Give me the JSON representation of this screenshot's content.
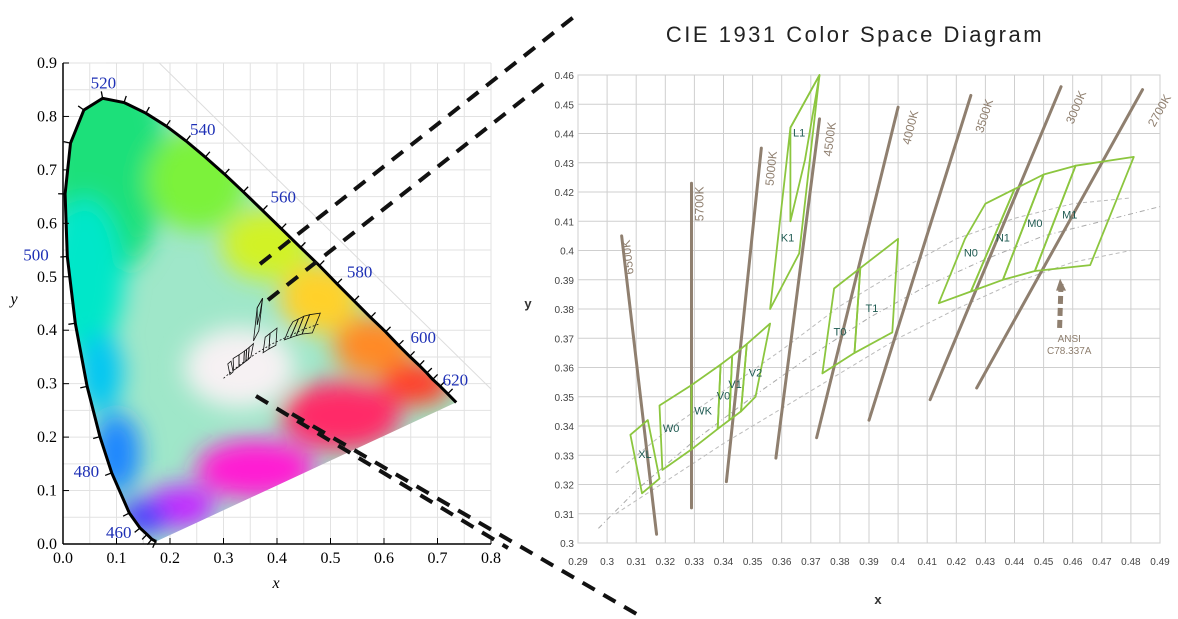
{
  "left_chart": {
    "type": "chromaticity",
    "xlabel": "x",
    "ylabel": "y",
    "xlim": [
      0,
      0.8
    ],
    "ylim": [
      0,
      0.9
    ],
    "xticks": [
      "0.0",
      "0.1",
      "0.2",
      "0.3",
      "0.4",
      "0.5",
      "0.6",
      "0.7",
      "0.8"
    ],
    "yticks": [
      "0.0",
      "0.1",
      "0.2",
      "0.3",
      "0.4",
      "0.5",
      "0.6",
      "0.7",
      "0.8",
      "0.9"
    ],
    "wavelength_labels": [
      {
        "label": "460",
        "x": 0.144,
        "y": 0.03
      },
      {
        "label": "480",
        "x": 0.091,
        "y": 0.133
      },
      {
        "label": "500",
        "x": 0.008,
        "y": 0.538
      },
      {
        "label": "520",
        "x": 0.074,
        "y": 0.834
      },
      {
        "label": "540",
        "x": 0.23,
        "y": 0.754
      },
      {
        "label": "560",
        "x": 0.373,
        "y": 0.624
      },
      {
        "label": "580",
        "x": 0.512,
        "y": 0.487
      },
      {
        "label": "600",
        "x": 0.627,
        "y": 0.372
      },
      {
        "label": "620",
        "x": 0.691,
        "y": 0.308
      }
    ]
  },
  "right_chart": {
    "type": "line",
    "title": "CIE 1931 Color Space Diagram",
    "xlabel": "x",
    "ylabel": "y",
    "xlim": [
      0.29,
      0.49
    ],
    "ylim": [
      0.3,
      0.46
    ],
    "xticks": [
      "0.29",
      "0.3",
      "0.31",
      "0.32",
      "0.33",
      "0.34",
      "0.35",
      "0.36",
      "0.37",
      "0.38",
      "0.39",
      "0.4",
      "0.41",
      "0.42",
      "0.43",
      "0.44",
      "0.45",
      "0.46",
      "0.47",
      "0.48",
      "0.49"
    ],
    "yticks": [
      "0.3",
      "0.31",
      "0.32",
      "0.33",
      "0.34",
      "0.35",
      "0.36",
      "0.37",
      "0.38",
      "0.39",
      "0.4",
      "0.41",
      "0.42",
      "0.43",
      "0.44",
      "0.45",
      "0.46"
    ],
    "grid": true,
    "cct_lines": [
      {
        "label": "6500K",
        "x1": 0.305,
        "y1": 0.405,
        "x2": 0.317,
        "y2": 0.303
      },
      {
        "label": "5700K",
        "x1": 0.329,
        "y1": 0.423,
        "x2": 0.329,
        "y2": 0.312
      },
      {
        "label": "5000K",
        "x1": 0.353,
        "y1": 0.435,
        "x2": 0.341,
        "y2": 0.321
      },
      {
        "label": "4500K",
        "x1": 0.373,
        "y1": 0.445,
        "x2": 0.358,
        "y2": 0.329
      },
      {
        "label": "4000K",
        "x1": 0.4,
        "y1": 0.449,
        "x2": 0.372,
        "y2": 0.336
      },
      {
        "label": "3500K",
        "x1": 0.425,
        "y1": 0.453,
        "x2": 0.39,
        "y2": 0.342
      },
      {
        "label": "3000K",
        "x1": 0.456,
        "y1": 0.456,
        "x2": 0.411,
        "y2": 0.349
      },
      {
        "label": "2700K",
        "x1": 0.484,
        "y1": 0.455,
        "x2": 0.427,
        "y2": 0.353
      }
    ],
    "bins": [
      {
        "label": "XL",
        "lx": 0.313,
        "ly": 0.329,
        "pts": [
          [
            0.308,
            0.337
          ],
          [
            0.314,
            0.342
          ],
          [
            0.318,
            0.322
          ],
          [
            0.312,
            0.317
          ]
        ]
      },
      {
        "label": "W0",
        "lx": 0.322,
        "ly": 0.338,
        "pts": [
          [
            0.318,
            0.347
          ],
          [
            0.329,
            0.354
          ],
          [
            0.329,
            0.332
          ],
          [
            0.319,
            0.325
          ]
        ]
      },
      {
        "label": "WK",
        "lx": 0.333,
        "ly": 0.344,
        "pts": [
          [
            0.329,
            0.354
          ],
          [
            0.339,
            0.361
          ],
          [
            0.338,
            0.339
          ],
          [
            0.329,
            0.332
          ]
        ]
      },
      {
        "label": "V0",
        "lx": 0.34,
        "ly": 0.349,
        "pts": [
          [
            0.339,
            0.361
          ],
          [
            0.343,
            0.364
          ],
          [
            0.342,
            0.342
          ],
          [
            0.338,
            0.339
          ]
        ]
      },
      {
        "label": "V1",
        "lx": 0.344,
        "ly": 0.353,
        "pts": [
          [
            0.343,
            0.364
          ],
          [
            0.348,
            0.368
          ],
          [
            0.346,
            0.345
          ],
          [
            0.342,
            0.342
          ]
        ]
      },
      {
        "label": "V2",
        "lx": 0.351,
        "ly": 0.357,
        "pts": [
          [
            0.348,
            0.368
          ],
          [
            0.356,
            0.375
          ],
          [
            0.351,
            0.35
          ],
          [
            0.346,
            0.345
          ]
        ]
      },
      {
        "label": "K1",
        "lx": 0.362,
        "ly": 0.403,
        "pts": [
          [
            0.363,
            0.442
          ],
          [
            0.373,
            0.46
          ],
          [
            0.366,
            0.399
          ],
          [
            0.356,
            0.38
          ]
        ]
      },
      {
        "label": "L1",
        "lx": 0.366,
        "ly": 0.439,
        "pts": [
          [
            0.363,
            0.442
          ],
          [
            0.373,
            0.46
          ],
          [
            0.368,
            0.431
          ],
          [
            0.363,
            0.41
          ]
        ]
      },
      {
        "label": "T0",
        "lx": 0.38,
        "ly": 0.371,
        "pts": [
          [
            0.378,
            0.387
          ],
          [
            0.387,
            0.394
          ],
          [
            0.385,
            0.365
          ],
          [
            0.374,
            0.358
          ]
        ]
      },
      {
        "label": "T1",
        "lx": 0.391,
        "ly": 0.379,
        "pts": [
          [
            0.387,
            0.394
          ],
          [
            0.4,
            0.404
          ],
          [
            0.398,
            0.372
          ],
          [
            0.385,
            0.365
          ]
        ]
      },
      {
        "label": "N0",
        "lx": 0.425,
        "ly": 0.398,
        "pts": [
          [
            0.423,
            0.404
          ],
          [
            0.43,
            0.416
          ],
          [
            0.44,
            0.421
          ],
          [
            0.425,
            0.386
          ],
          [
            0.414,
            0.382
          ]
        ]
      },
      {
        "label": "N1",
        "lx": 0.436,
        "ly": 0.403,
        "pts": [
          [
            0.44,
            0.421
          ],
          [
            0.45,
            0.426
          ],
          [
            0.436,
            0.39
          ],
          [
            0.425,
            0.386
          ]
        ]
      },
      {
        "label": "M0",
        "lx": 0.447,
        "ly": 0.408,
        "pts": [
          [
            0.45,
            0.426
          ],
          [
            0.461,
            0.429
          ],
          [
            0.447,
            0.393
          ],
          [
            0.436,
            0.39
          ]
        ]
      },
      {
        "label": "M1",
        "lx": 0.459,
        "ly": 0.411,
        "pts": [
          [
            0.461,
            0.429
          ],
          [
            0.481,
            0.432
          ],
          [
            0.466,
            0.395
          ],
          [
            0.447,
            0.393
          ]
        ]
      }
    ],
    "annotation": {
      "line1": "ANSI",
      "line2": "C78.337A",
      "x": 0.454,
      "y": 0.366,
      "arrow_to": [
        0.456,
        0.389
      ]
    }
  }
}
